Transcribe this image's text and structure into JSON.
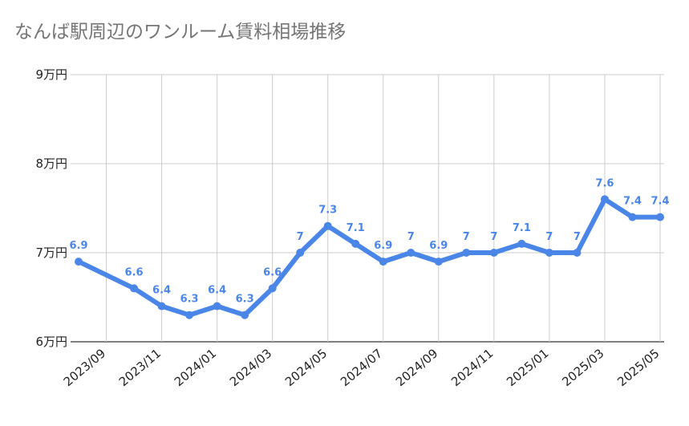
{
  "chart_data": {
    "type": "line",
    "title": "なんば駅周辺のワンルーム賃料相場推移",
    "xlabel": "",
    "ylabel": "",
    "ylim": [
      6,
      9
    ],
    "ytick_values": [
      6,
      7,
      8,
      9
    ],
    "ytick_labels": [
      "6万円",
      "7万円",
      "8万円",
      "9万円"
    ],
    "xtick_labels": [
      "2023/09",
      "2023/11",
      "2024/01",
      "2024/03",
      "2024/05",
      "2024/07",
      "2024/09",
      "2024/11",
      "2025/01",
      "2025/03",
      "2025/05"
    ],
    "grid": true,
    "color": "#4a86e8",
    "series": [
      {
        "x": [
          "2023/08",
          "2023/10",
          "2023/11",
          "2023/12",
          "2024/01",
          "2024/02",
          "2024/03",
          "2024/04",
          "2024/05",
          "2024/06",
          "2024/07",
          "2024/08",
          "2024/09",
          "2024/10",
          "2024/11",
          "2024/12",
          "2025/01",
          "2025/02",
          "2025/03",
          "2025/04",
          "2025/05"
        ],
        "values": [
          6.9,
          6.6,
          6.4,
          6.3,
          6.4,
          6.3,
          6.6,
          7,
          7.3,
          7.1,
          6.9,
          7,
          6.9,
          7,
          7,
          7.1,
          7,
          7,
          7.6,
          7.4,
          7.4
        ],
        "labels": [
          "6.9",
          "6.6",
          "6.4",
          "6.3",
          "6.4",
          "6.3",
          "6.6",
          "7",
          "7.3",
          "7.1",
          "6.9",
          "7",
          "6.9",
          "7",
          "7",
          "7.1",
          "7",
          "7",
          "7.6",
          "7.4",
          "7.4"
        ]
      }
    ]
  }
}
